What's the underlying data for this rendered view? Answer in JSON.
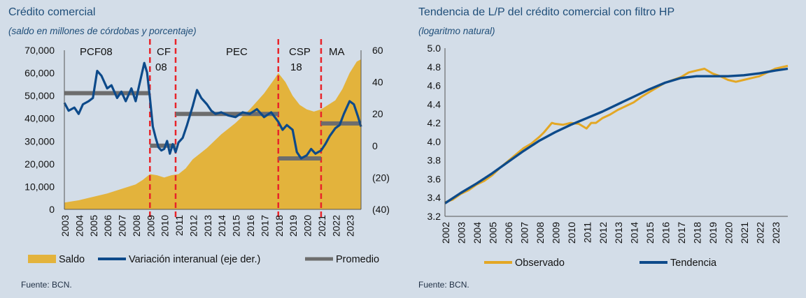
{
  "charts": [
    {
      "title": "Crédito comercial",
      "subtitle": "(saldo en millones de córdobas y porcentaje)",
      "source": "Fuente: BCN.",
      "legend": [
        "Saldo",
        "Variación interanual (eje der.)",
        "Promedio"
      ],
      "left_ticks": [
        "70,000",
        "60,000",
        "50,000",
        "40,000",
        "30,000",
        "20,000",
        "10,000",
        "0"
      ],
      "right_ticks": [
        "60",
        "40",
        "20",
        "0",
        "(20)",
        "(40)"
      ],
      "x_ticks": [
        "2003",
        "2004",
        "2005",
        "2006",
        "2007",
        "2008",
        "2009",
        "2010",
        "2011",
        "2012",
        "2013",
        "2014",
        "2015",
        "2016",
        "2017",
        "2018",
        "2019",
        "2020",
        "2021",
        "2022",
        "2023"
      ],
      "periods": [
        "PCF08",
        "CF 08",
        "PEC",
        "CSP 18",
        "MA"
      ]
    },
    {
      "title": "Tendencia de L/P del crédito comercial con filtro HP",
      "subtitle": "(logaritmo natural)",
      "source": "Fuente: BCN.",
      "legend": [
        "Observado",
        "Tendencia"
      ],
      "y_ticks": [
        "5.0",
        "4.8",
        "4.6",
        "4.4",
        "4.2",
        "4.0",
        "3.8",
        "3.6",
        "3.4",
        "3.2"
      ],
      "x_ticks": [
        "2002",
        "2003",
        "2004",
        "2005",
        "2006",
        "2007",
        "2008",
        "2009",
        "2010",
        "2011",
        "2012",
        "2013",
        "2014",
        "2015",
        "2016",
        "2017",
        "2018",
        "2019",
        "2020",
        "2021",
        "2022",
        "2023"
      ]
    }
  ],
  "chart_data": [
    {
      "type": "area",
      "title": "Crédito comercial",
      "subtitle": "(saldo en millones de córdobas y porcentaje)",
      "x_range": [
        2003,
        2023.8
      ],
      "y_left_range": [
        0,
        70000
      ],
      "y_right_range": [
        -40,
        60
      ],
      "series": [
        {
          "name": "Saldo",
          "axis": "left",
          "type": "area",
          "color": "#e3b33c",
          "x": [
            2003.0,
            2004.0,
            2005.0,
            2006.0,
            2007.0,
            2008.0,
            2008.5,
            2009.0,
            2009.5,
            2010.0,
            2010.5,
            2011.0,
            2011.5,
            2012.0,
            2013.0,
            2014.0,
            2015.0,
            2016.0,
            2017.0,
            2017.8,
            2018.0,
            2018.5,
            2019.0,
            2019.5,
            2020.0,
            2020.5,
            2021.0,
            2021.5,
            2022.0,
            2022.5,
            2023.0,
            2023.5,
            2023.8
          ],
          "y": [
            3000,
            4000,
            5500,
            7000,
            9000,
            11000,
            13000,
            15500,
            15000,
            14000,
            15000,
            15500,
            18000,
            22000,
            27000,
            33000,
            38000,
            44000,
            51000,
            58000,
            60000,
            56000,
            50000,
            46000,
            44000,
            43000,
            44000,
            46000,
            48000,
            53000,
            60000,
            65000,
            66000
          ]
        },
        {
          "name": "Variación interanual (eje der.)",
          "axis": "right",
          "type": "line",
          "color": "#0d4a8a",
          "x": [
            2003.0,
            2003.3,
            2003.7,
            2004.0,
            2004.3,
            2004.7,
            2005.0,
            2005.3,
            2005.6,
            2006.0,
            2006.3,
            2006.7,
            2007.0,
            2007.3,
            2007.7,
            2008.0,
            2008.3,
            2008.6,
            2008.8,
            2009.0,
            2009.2,
            2009.4,
            2009.6,
            2009.8,
            2010.0,
            2010.2,
            2010.4,
            2010.6,
            2010.8,
            2011.0,
            2011.3,
            2011.6,
            2012.0,
            2012.3,
            2012.6,
            2013.0,
            2013.3,
            2013.6,
            2014.0,
            2014.5,
            2015.0,
            2015.5,
            2016.0,
            2016.5,
            2017.0,
            2017.5,
            2018.0,
            2018.3,
            2018.6,
            2019.0,
            2019.3,
            2019.6,
            2020.0,
            2020.3,
            2020.6,
            2021.0,
            2021.3,
            2021.6,
            2022.0,
            2022.3,
            2022.6,
            2023.0,
            2023.3,
            2023.6,
            2023.8
          ],
          "y": [
            27,
            22,
            24,
            20,
            26,
            28,
            30,
            47,
            44,
            36,
            38,
            30,
            34,
            28,
            36,
            28,
            40,
            52,
            46,
            30,
            12,
            5,
            -1,
            -3,
            -2,
            3,
            -5,
            1,
            -4,
            2,
            5,
            13,
            25,
            35,
            30,
            26,
            22,
            20,
            21,
            19,
            18,
            21,
            20,
            23,
            18,
            21,
            15,
            10,
            13,
            10,
            -4,
            -8,
            -6,
            -2,
            -5,
            -3,
            1,
            6,
            11,
            13,
            20,
            28,
            26,
            18,
            12
          ]
        },
        {
          "name": "Promedio",
          "axis": "right",
          "type": "step",
          "color": "#6d6d6d",
          "segments": [
            [
              2003,
              2009,
              33
            ],
            [
              2009,
              2010.8,
              0
            ],
            [
              2010.8,
              2018,
              20
            ],
            [
              2018,
              2021,
              -8
            ],
            [
              2021,
              2023.8,
              14
            ]
          ]
        }
      ],
      "vlines": [
        2009,
        2010.8,
        2018,
        2021
      ],
      "annotations": [
        "PCF08",
        "CF 08",
        "PEC",
        "CSP 18",
        "MA"
      ],
      "legend": "bottom"
    },
    {
      "type": "line",
      "title": "Tendencia de L/P del crédito comercial con filtro HP",
      "subtitle": "(logaritmo natural)",
      "x_range": [
        2002,
        2023.8
      ],
      "y_range": [
        3.2,
        5.0
      ],
      "series": [
        {
          "name": "Observado",
          "color": "#e3a724",
          "x": [
            2002.0,
            2002.5,
            2003.0,
            2003.5,
            2004.0,
            2004.5,
            2005.0,
            2005.5,
            2006.0,
            2006.5,
            2007.0,
            2007.5,
            2008.0,
            2008.3,
            2008.6,
            2008.8,
            2009.0,
            2009.5,
            2010.0,
            2010.5,
            2011.0,
            2011.3,
            2011.6,
            2012.0,
            2012.5,
            2013.0,
            2013.5,
            2014.0,
            2014.5,
            2015.0,
            2015.5,
            2016.0,
            2016.5,
            2017.0,
            2017.5,
            2018.0,
            2018.5,
            2019.0,
            2019.5,
            2020.0,
            2020.5,
            2021.0,
            2021.5,
            2022.0,
            2022.5,
            2023.0,
            2023.5,
            2023.8
          ],
          "y": [
            3.35,
            3.38,
            3.44,
            3.48,
            3.54,
            3.58,
            3.64,
            3.72,
            3.79,
            3.86,
            3.93,
            3.98,
            4.05,
            4.1,
            4.16,
            4.2,
            4.19,
            4.18,
            4.2,
            4.19,
            4.14,
            4.2,
            4.2,
            4.25,
            4.29,
            4.34,
            4.38,
            4.42,
            4.48,
            4.53,
            4.58,
            4.63,
            4.66,
            4.69,
            4.74,
            4.76,
            4.78,
            4.73,
            4.7,
            4.66,
            4.64,
            4.66,
            4.68,
            4.7,
            4.74,
            4.78,
            4.8,
            4.81
          ]
        },
        {
          "name": "Tendencia",
          "color": "#0d4a8a",
          "x": [
            2002.0,
            2003.0,
            2004.0,
            2005.0,
            2006.0,
            2007.0,
            2008.0,
            2009.0,
            2010.0,
            2011.0,
            2012.0,
            2013.0,
            2014.0,
            2015.0,
            2016.0,
            2017.0,
            2018.0,
            2019.0,
            2020.0,
            2021.0,
            2022.0,
            2023.0,
            2023.8
          ],
          "y": [
            3.34,
            3.45,
            3.55,
            3.66,
            3.78,
            3.9,
            4.01,
            4.1,
            4.18,
            4.25,
            4.32,
            4.4,
            4.48,
            4.56,
            4.63,
            4.68,
            4.7,
            4.7,
            4.7,
            4.71,
            4.73,
            4.76,
            4.78
          ]
        }
      ],
      "legend": "bottom"
    }
  ]
}
